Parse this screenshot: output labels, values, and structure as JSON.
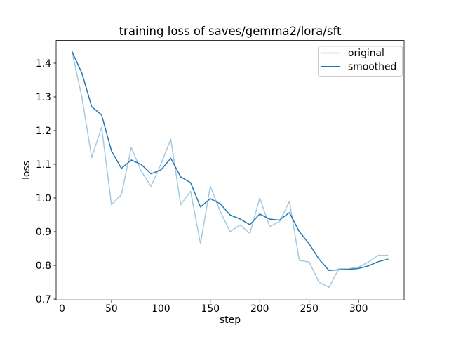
{
  "figure": {
    "background": "#ffffff",
    "frame_color": "#000000",
    "legend_border_color": "#cccccc"
  },
  "chart_data": {
    "type": "line",
    "title": "training loss of saves/gemma2/lora/sft",
    "xlabel": "step",
    "ylabel": "loss",
    "xlim": [
      -6,
      346
    ],
    "ylim": [
      0.6976,
      1.4674
    ],
    "grid": false,
    "legend": {
      "position": "upper right",
      "entries": [
        "original",
        "smoothed"
      ]
    },
    "x_ticks": {
      "values": [
        0,
        50,
        100,
        150,
        200,
        250,
        300
      ],
      "labels": [
        "0",
        "50",
        "100",
        "150",
        "200",
        "250",
        "300"
      ]
    },
    "y_ticks": {
      "values": [
        0.7,
        0.8,
        0.9,
        1.0,
        1.1,
        1.2,
        1.3,
        1.4
      ],
      "labels": [
        "0.7",
        "0.8",
        "0.9",
        "1.0",
        "1.1",
        "1.2",
        "1.3",
        "1.4"
      ]
    },
    "x": [
      10,
      20,
      30,
      40,
      50,
      60,
      70,
      80,
      90,
      100,
      110,
      120,
      130,
      140,
      150,
      160,
      170,
      180,
      190,
      200,
      210,
      220,
      230,
      240,
      250,
      260,
      270,
      280,
      290,
      300,
      310,
      320,
      330
    ],
    "series": [
      {
        "name": "original",
        "color": "#a5c9e1",
        "linewidth": 1.5,
        "values": [
          1.435,
          1.3,
          1.12,
          1.21,
          0.98,
          1.01,
          1.15,
          1.08,
          1.035,
          1.1,
          1.175,
          0.98,
          1.02,
          0.865,
          1.035,
          0.96,
          0.9,
          0.92,
          0.895,
          1.0,
          0.915,
          0.93,
          0.99,
          0.815,
          0.81,
          0.75,
          0.735,
          0.79,
          0.79,
          0.795,
          0.81,
          0.83,
          0.83
        ]
      },
      {
        "name": "smoothed",
        "color": "#1f77b4",
        "linewidth": 1.5,
        "values": [
          1.435,
          1.371,
          1.2706,
          1.2464,
          1.1398,
          1.0879,
          1.1127,
          1.0996,
          1.0718,
          1.0831,
          1.1178,
          1.0627,
          1.0456,
          0.9734,
          0.998,
          0.9828,
          0.9497,
          0.9378,
          0.9207,
          0.9524,
          0.9374,
          0.9345,
          0.9567,
          0.9,
          0.864,
          0.8184,
          0.785,
          0.787,
          0.7882,
          0.7909,
          0.7986,
          0.8111,
          0.8187
        ]
      }
    ]
  }
}
